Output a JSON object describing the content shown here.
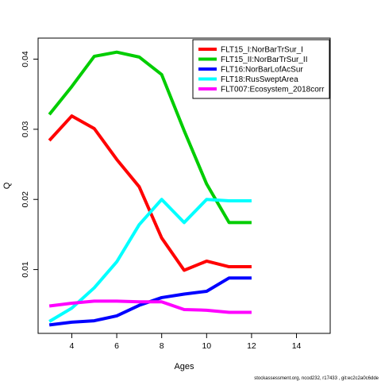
{
  "chart_data": {
    "type": "line",
    "xlabel": "Ages",
    "ylabel": "Q",
    "xlim": [
      2.5,
      15.5
    ],
    "ylim": [
      0.0009,
      0.043
    ],
    "xticks": [
      "4",
      "6",
      "8",
      "10",
      "12",
      "14"
    ],
    "yticks": [
      "0.01",
      "0.02",
      "0.03",
      "0.04"
    ],
    "legend_position": "top-right",
    "grid": false,
    "x": [
      3,
      4,
      5,
      6,
      7,
      8,
      9,
      10,
      11,
      12
    ],
    "series": [
      {
        "name": "FLT15_I:NorBarTrSur_I",
        "color": "#ff0000",
        "values": [
          0.0284,
          0.0319,
          0.0301,
          0.0257,
          0.0218,
          0.0145,
          0.0099,
          0.0112,
          0.0104,
          0.0104
        ]
      },
      {
        "name": "FLT15_II:NorBarTrSur_II",
        "color": "#00cd00",
        "values": [
          0.0321,
          0.0361,
          0.0404,
          0.041,
          0.0403,
          0.0378,
          0.0298,
          0.0222,
          0.0167,
          0.0167
        ]
      },
      {
        "name": "FLT16:NorBarLofAcSur",
        "color": "#0000ff",
        "values": [
          0.0021,
          0.0025,
          0.0027,
          0.0034,
          0.0049,
          0.006,
          0.0065,
          0.0069,
          0.0088,
          0.0088
        ]
      },
      {
        "name": "FLT18:RusSweptArea",
        "color": "#00ffff",
        "values": [
          0.0026,
          0.0045,
          0.0074,
          0.0111,
          0.0164,
          0.02,
          0.0167,
          0.02,
          0.0198,
          0.0198
        ]
      },
      {
        "name": "FLT007:Ecosystem_2018corr",
        "color": "#ff00ff",
        "values": [
          0.0048,
          0.0052,
          0.0055,
          0.0055,
          0.0054,
          0.0054,
          0.0043,
          0.0042,
          0.0039,
          0.0039
        ]
      }
    ]
  },
  "footer": "stockassessment.org, ncod232, r17433 , git:ec2c2a0c6dde"
}
